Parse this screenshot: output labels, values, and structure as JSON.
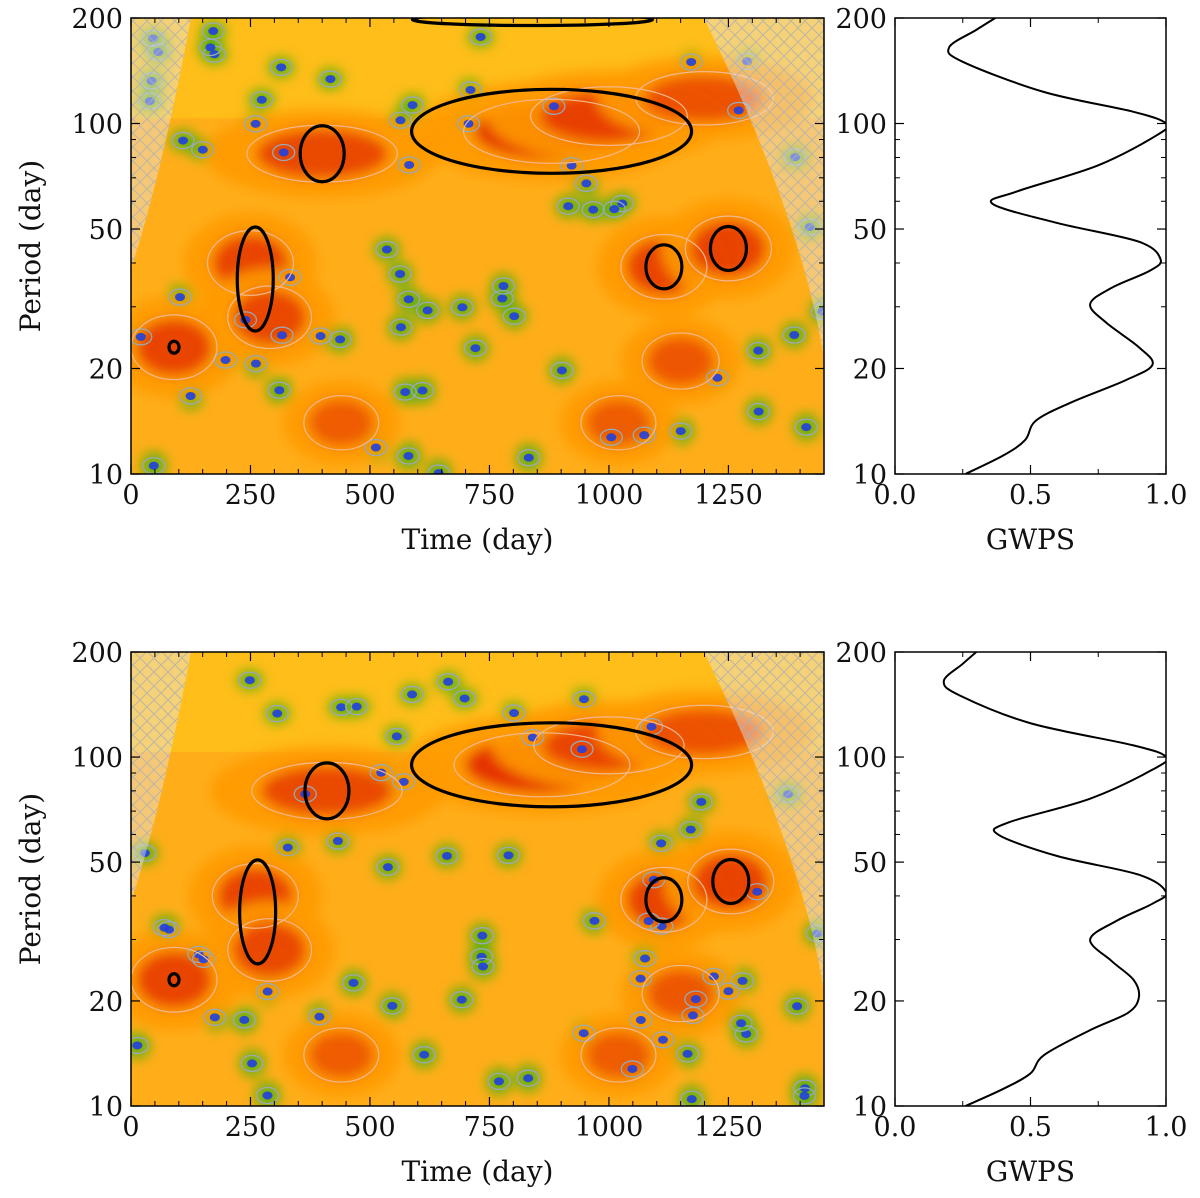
{
  "chart_data": [
    {
      "type": "heatmap",
      "title": "",
      "xlabel": "Time (day)",
      "ylabel": "Period (day)",
      "x_ticks": [
        0,
        250,
        500,
        750,
        1000,
        1250
      ],
      "y_ticks": [
        10,
        20,
        50,
        100,
        200
      ],
      "xlim": [
        0,
        1450
      ],
      "ylim": [
        10,
        200
      ],
      "y_scale": "log",
      "colormap": [
        "#2040e0",
        "#50b010",
        "#e8e020",
        "#ff9a00",
        "#e02000"
      ],
      "significance_contour_color": "#000000",
      "cone_of_influence": "hatched",
      "peaks": [
        {
          "time": 880,
          "period": 95,
          "power": 1.0
        },
        {
          "time": 1000,
          "period": 105,
          "power": 0.85
        },
        {
          "time": 1200,
          "period": 118,
          "power": 0.7
        },
        {
          "time": 400,
          "period": 82,
          "power": 0.8
        },
        {
          "time": 250,
          "period": 40,
          "power": 0.85
        },
        {
          "time": 290,
          "period": 28,
          "power": 0.8
        },
        {
          "time": 90,
          "period": 23,
          "power": 0.85
        },
        {
          "time": 1115,
          "period": 39,
          "power": 0.85
        },
        {
          "time": 1250,
          "period": 44,
          "power": 0.85
        },
        {
          "time": 1150,
          "period": 21,
          "power": 0.65
        },
        {
          "time": 1020,
          "period": 14,
          "power": 0.6
        },
        {
          "time": 440,
          "period": 14,
          "power": 0.6
        }
      ],
      "significant_regions": [
        {
          "time": 880,
          "period": 95
        },
        {
          "time": 400,
          "period": 82
        },
        {
          "time": 260,
          "period": 36
        },
        {
          "time": 90,
          "period": 23
        },
        {
          "time": 1115,
          "period": 39
        },
        {
          "time": 1250,
          "period": 44
        },
        {
          "time": 840,
          "period": 198
        }
      ]
    },
    {
      "type": "line",
      "title": "",
      "xlabel": "GWPS",
      "ylabel": "",
      "x_ticks": [
        "0.0",
        "0.5",
        "1.0"
      ],
      "y_ticks": [
        10,
        20,
        50,
        100,
        200
      ],
      "xlim": [
        0,
        1
      ],
      "ylim": [
        10,
        200
      ],
      "y_scale": "log",
      "series": [
        {
          "points": [
            [
              0.26,
              10
            ],
            [
              0.4,
              11.3
            ],
            [
              0.48,
              12.5
            ],
            [
              0.52,
              14.2
            ],
            [
              0.65,
              16
            ],
            [
              0.85,
              18.5
            ],
            [
              0.95,
              20.5
            ],
            [
              0.9,
              23
            ],
            [
              0.78,
              27
            ],
            [
              0.72,
              30.5
            ],
            [
              0.8,
              34
            ],
            [
              0.94,
              38
            ],
            [
              0.98,
              41
            ],
            [
              0.9,
              46
            ],
            [
              0.6,
              52
            ],
            [
              0.36,
              59
            ],
            [
              0.45,
              64
            ],
            [
              0.75,
              76
            ],
            [
              0.97,
              93
            ],
            [
              1.0,
              100
            ],
            [
              0.88,
              108
            ],
            [
              0.55,
              123
            ],
            [
              0.25,
              150
            ],
            [
              0.2,
              165
            ],
            [
              0.3,
              185
            ],
            [
              0.37,
              200
            ]
          ]
        }
      ]
    },
    {
      "type": "heatmap",
      "title": "",
      "xlabel": "Time (day)",
      "ylabel": "Period (day)",
      "x_ticks": [
        0,
        250,
        500,
        750,
        1000,
        1250
      ],
      "y_ticks": [
        10,
        20,
        50,
        100,
        200
      ],
      "xlim": [
        0,
        1450
      ],
      "ylim": [
        10,
        200
      ],
      "y_scale": "log",
      "colormap": [
        "#2040e0",
        "#50b010",
        "#e8e020",
        "#ff9a00",
        "#e02000"
      ],
      "significance_contour_color": "#000000",
      "cone_of_influence": "hatched",
      "peaks": [
        {
          "time": 860,
          "period": 95,
          "power": 1.0
        },
        {
          "time": 1000,
          "period": 108,
          "power": 0.8
        },
        {
          "time": 1200,
          "period": 118,
          "power": 0.7
        },
        {
          "time": 410,
          "period": 80,
          "power": 0.8
        },
        {
          "time": 260,
          "period": 40,
          "power": 0.85
        },
        {
          "time": 290,
          "period": 28,
          "power": 0.8
        },
        {
          "time": 90,
          "period": 23,
          "power": 0.85
        },
        {
          "time": 1115,
          "period": 39,
          "power": 0.85
        },
        {
          "time": 1255,
          "period": 44,
          "power": 0.85
        },
        {
          "time": 1150,
          "period": 21,
          "power": 0.65
        },
        {
          "time": 1020,
          "period": 14,
          "power": 0.6
        },
        {
          "time": 440,
          "period": 14,
          "power": 0.6
        }
      ],
      "significant_regions": [
        {
          "time": 880,
          "period": 95
        },
        {
          "time": 410,
          "period": 80
        },
        {
          "time": 265,
          "period": 36
        },
        {
          "time": 90,
          "period": 23
        },
        {
          "time": 1115,
          "period": 39
        },
        {
          "time": 1255,
          "period": 44
        }
      ]
    },
    {
      "type": "line",
      "title": "",
      "xlabel": "GWPS",
      "ylabel": "",
      "x_ticks": [
        "0.0",
        "0.5",
        "1.0"
      ],
      "y_ticks": [
        10,
        20,
        50,
        100,
        200
      ],
      "xlim": [
        0,
        1
      ],
      "ylim": [
        10,
        200
      ],
      "y_scale": "log",
      "series": [
        {
          "points": [
            [
              0.26,
              10
            ],
            [
              0.4,
              11.2
            ],
            [
              0.5,
              12.4
            ],
            [
              0.55,
              14
            ],
            [
              0.72,
              16.5
            ],
            [
              0.86,
              18.5
            ],
            [
              0.9,
              20.5
            ],
            [
              0.88,
              23
            ],
            [
              0.8,
              26
            ],
            [
              0.72,
              30
            ],
            [
              0.82,
              34
            ],
            [
              0.95,
              38
            ],
            [
              1.0,
              41
            ],
            [
              0.9,
              46
            ],
            [
              0.6,
              52
            ],
            [
              0.38,
              60
            ],
            [
              0.42,
              65
            ],
            [
              0.72,
              76
            ],
            [
              0.95,
              92
            ],
            [
              1.0,
              100
            ],
            [
              0.88,
              108
            ],
            [
              0.5,
              125
            ],
            [
              0.24,
              150
            ],
            [
              0.18,
              165
            ],
            [
              0.25,
              185
            ],
            [
              0.3,
              200
            ]
          ]
        }
      ]
    }
  ]
}
